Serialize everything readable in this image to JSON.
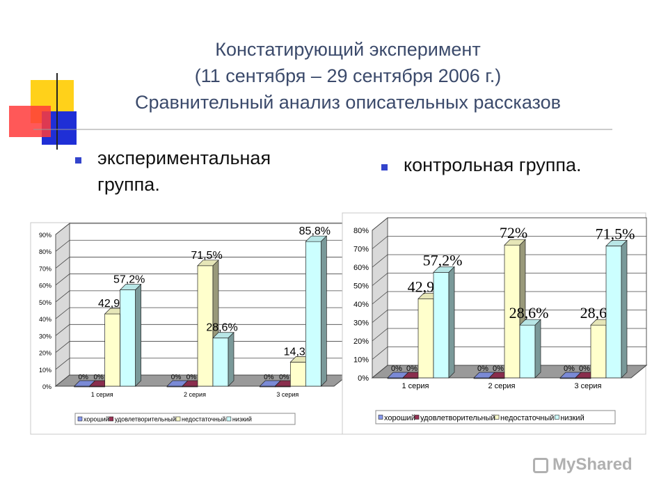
{
  "slide": {
    "title_lines": [
      "Констатирующий эксперимент",
      "(11 сентября – 29 сентября 2006 г.)",
      "Сравнительный анализ описательных рассказов"
    ],
    "bullet_left_line1": "экспериментальная",
    "bullet_left_line2": "группа.",
    "bullet_right": "контрольная группа.",
    "logo": "MyShared"
  },
  "colors": {
    "title": "#3b4a6b",
    "bullet": "#3344cc",
    "decor_yellow": "#ffd11a",
    "decor_red": "#ff3b3b",
    "decor_blue": "#1f2fd6",
    "series": [
      "#8899ee",
      "#993355",
      "#ffffcc",
      "#ccffff"
    ]
  },
  "chart_data": [
    {
      "type": "bar",
      "categories": [
        "1 серия",
        "2 серия",
        "3 серия"
      ],
      "series": [
        {
          "name": "хороший",
          "values": [
            0,
            0,
            0
          ],
          "labels": [
            "0%",
            "0%",
            "0%"
          ]
        },
        {
          "name": "удовлетворительный",
          "values": [
            0,
            0,
            0
          ],
          "labels": [
            "0%",
            "0%",
            "0%"
          ]
        },
        {
          "name": "недостаточный",
          "values": [
            42.9,
            71.5,
            14.3
          ],
          "labels": [
            "42,9%",
            "71,5%",
            "14,3%"
          ]
        },
        {
          "name": "низкий",
          "values": [
            57.2,
            28.6,
            85.8
          ],
          "labels": [
            "57,2%",
            "28,6%",
            "85,8%"
          ]
        }
      ],
      "ylim": [
        0,
        90
      ],
      "yticks": [
        "0%",
        "10%",
        "20%",
        "30%",
        "40%",
        "50%",
        "60%",
        "70%",
        "80%",
        "90%"
      ],
      "grid": true,
      "legend": "bottom"
    },
    {
      "type": "bar",
      "categories": [
        "1 серия",
        "2 серия",
        "3 серия"
      ],
      "series": [
        {
          "name": "хороший",
          "values": [
            0,
            0,
            0
          ],
          "labels": [
            "0%",
            "0%",
            "0%"
          ]
        },
        {
          "name": "удовлетворительный",
          "values": [
            0,
            0,
            0
          ],
          "labels": [
            "0%",
            "0%",
            "0%"
          ]
        },
        {
          "name": "недостаточный",
          "values": [
            42.9,
            72,
            28.6
          ],
          "labels": [
            "42,9%",
            "72%",
            "28,6%"
          ]
        },
        {
          "name": "низкий",
          "values": [
            57.2,
            28.6,
            71.5
          ],
          "labels": [
            "57,2%",
            "28,6%",
            "71,5%"
          ]
        }
      ],
      "ylim": [
        0,
        80
      ],
      "yticks": [
        "0%",
        "10%",
        "20%",
        "30%",
        "40%",
        "50%",
        "60%",
        "70%",
        "80%"
      ],
      "grid": true,
      "legend": "bottom"
    }
  ]
}
